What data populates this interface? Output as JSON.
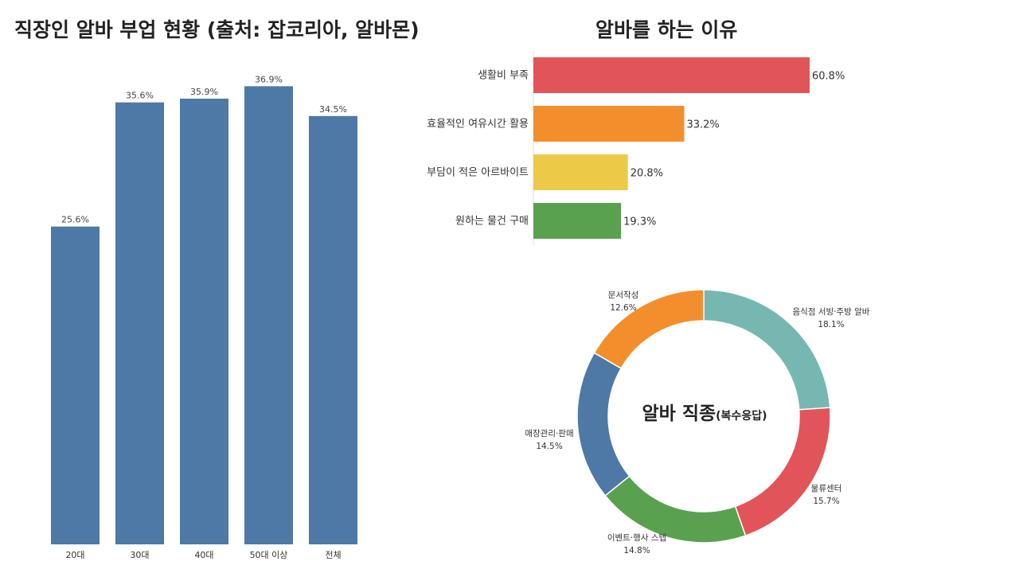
{
  "titles": {
    "left": "직장인 알바 부업 현황 (출처: 잡코리아, 알바몬)",
    "right": "알바를 하는 이유"
  },
  "donut_center": {
    "main": "알바 직종",
    "sub": "(복수응답)"
  },
  "chart_data": [
    {
      "type": "bar",
      "categories": [
        "20대",
        "30대",
        "40대",
        "50대 이상",
        "전체"
      ],
      "values": [
        25.6,
        35.6,
        35.9,
        36.9,
        34.5
      ],
      "labels": [
        "25.6%",
        "35.6%",
        "35.9%",
        "36.9%",
        "34.5%"
      ],
      "title": "직장인 알바 부업 현황 (출처: 잡코리아, 알바몬)",
      "ylim": [
        0,
        37.5
      ],
      "grid": false,
      "color": "#4e78a6"
    },
    {
      "type": "bar",
      "orientation": "horizontal",
      "categories": [
        "생활비 부족",
        "효율적인 여유시간 활용",
        "부담이 적은 아르바이트",
        "원하는 물건 구매"
      ],
      "values": [
        60.8,
        33.2,
        20.8,
        19.3
      ],
      "labels": [
        "60.8%",
        "33.2%",
        "20.8%",
        "19.3%"
      ],
      "colors": [
        "#e1555a",
        "#f28f2c",
        "#ecc947",
        "#59a14f"
      ],
      "title": "알바를 하는 이유",
      "grid": false
    },
    {
      "type": "pie",
      "donut": true,
      "categories": [
        "음식점 서빙·주방 알바",
        "물류센터",
        "이벤트·행사 스텝",
        "매장관리·판매",
        "문서작성"
      ],
      "values": [
        18.1,
        15.7,
        14.8,
        14.5,
        12.6
      ],
      "labels": [
        "18.1%",
        "15.7%",
        "14.8%",
        "14.5%",
        "12.6%"
      ],
      "colors": [
        "#76b7b2",
        "#e1555a",
        "#59a14f",
        "#4e78a6",
        "#f28f2c"
      ],
      "title": "알바 직종(복수응답)"
    }
  ]
}
